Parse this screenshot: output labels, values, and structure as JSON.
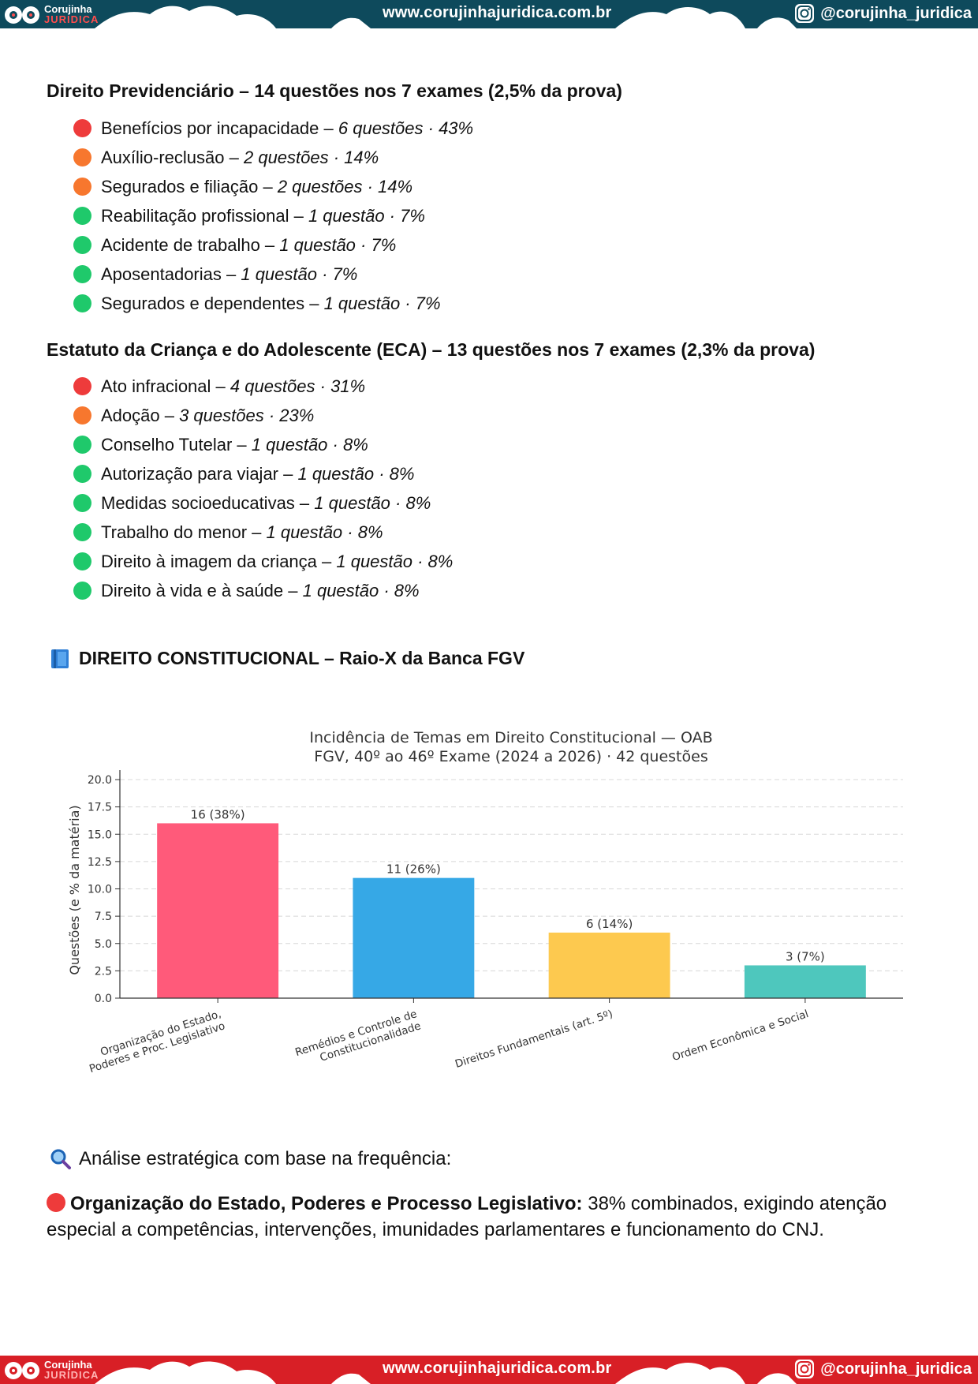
{
  "header": {
    "brand_name": "Corujinha",
    "brand_sub": "JURIDICA",
    "site": "www.corujinhajuridica.com.br",
    "instagram": "@corujinha_juridica"
  },
  "footer": {
    "brand_name": "Corujinha",
    "brand_sub": "JURIDICA",
    "site": "www.corujinhajuridica.com.br",
    "instagram": "@corujinha_juridica"
  },
  "previdenciario": {
    "title": "Direito Previdenciário – 14 questões nos 7 exames (2,5% da prova)",
    "items": [
      {
        "level": "red",
        "topic": "Benefícios por incapacidade – ",
        "count": "6 questões · 43%"
      },
      {
        "level": "orange",
        "topic": "Auxílio-reclusão – ",
        "count": "2 questões · 14%"
      },
      {
        "level": "orange",
        "topic": "Segurados e filiação – ",
        "count": "2 questões · 14%"
      },
      {
        "level": "green",
        "topic": "Reabilitação profissional – ",
        "count": "1 questão · 7%"
      },
      {
        "level": "green",
        "topic": "Acidente de trabalho – ",
        "count": "1 questão · 7%"
      },
      {
        "level": "green",
        "topic": "Aposentadorias – ",
        "count": "1 questão · 7%"
      },
      {
        "level": "green",
        "topic": "Segurados e dependentes – ",
        "count": "1 questão · 7%"
      }
    ]
  },
  "eca": {
    "title": "Estatuto da Criança e do Adolescente (ECA) – 13 questões nos 7 exames (2,3% da prova)",
    "items": [
      {
        "level": "red",
        "topic": "Ato infracional – ",
        "count": "4 questões · 31%"
      },
      {
        "level": "orange",
        "topic": "Adoção – ",
        "count": "3 questões · 23%"
      },
      {
        "level": "green",
        "topic": "Conselho Tutelar – ",
        "count": "1 questão · 8%"
      },
      {
        "level": "green",
        "topic": "Autorização para viajar – ",
        "count": "1 questão · 8%"
      },
      {
        "level": "green",
        "topic": "Medidas socioeducativas – ",
        "count": "1 questão · 8%"
      },
      {
        "level": "green",
        "topic": "Trabalho do menor – ",
        "count": "1 questão · 8%"
      },
      {
        "level": "green",
        "topic": "Direito à imagem da criança – ",
        "count": "1 questão · 8%"
      },
      {
        "level": "green",
        "topic": "Direito à vida e à saúde – ",
        "count": "1 questão · 8%"
      }
    ]
  },
  "constitucional": {
    "title": "DIREITO CONSTITUCIONAL – Raio-X da Banca FGV",
    "icon": "blue-book-icon"
  },
  "chart_data": {
    "type": "bar",
    "title": "Incidência de Temas em Direito Constitucional — OAB",
    "subtitle": "FGV, 40º ao 46º Exame (2024 a 2026) · 42 questões",
    "xlabel": "",
    "ylabel": "Questões (e % da matéria)",
    "ylim": [
      0,
      20
    ],
    "yticks": [
      "0.0",
      "2.5",
      "5.0",
      "7.5",
      "10.0",
      "12.5",
      "15.0",
      "17.5",
      "20.0"
    ],
    "grid": true,
    "categories": [
      [
        "Organização do Estado,",
        "Poderes e Proc. Legislativo"
      ],
      [
        "Remédios e Controle de",
        "Constitucionalidade"
      ],
      [
        "Direitos Fundamentais (art. 5º)"
      ],
      [
        "Ordem Econômica e Social"
      ]
    ],
    "values": [
      16,
      11,
      6,
      3
    ],
    "data_labels": [
      "16  (38%)",
      "11  (26%)",
      "6  (14%)",
      "3  (7%)"
    ],
    "colors": [
      "#ff5a7a",
      "#36a8e6",
      "#fdc94f",
      "#4ec7bd"
    ]
  },
  "analysis": {
    "heading": "Análise estratégica com base na frequência:",
    "icon": "magnifier-icon",
    "bold": "Organização do Estado, Poderes e Processo Legislativo:",
    "text": " 38% combinados, exigindo atenção especial a competências, intervenções, imunidades parlamentares e funcionamento do CNJ."
  }
}
